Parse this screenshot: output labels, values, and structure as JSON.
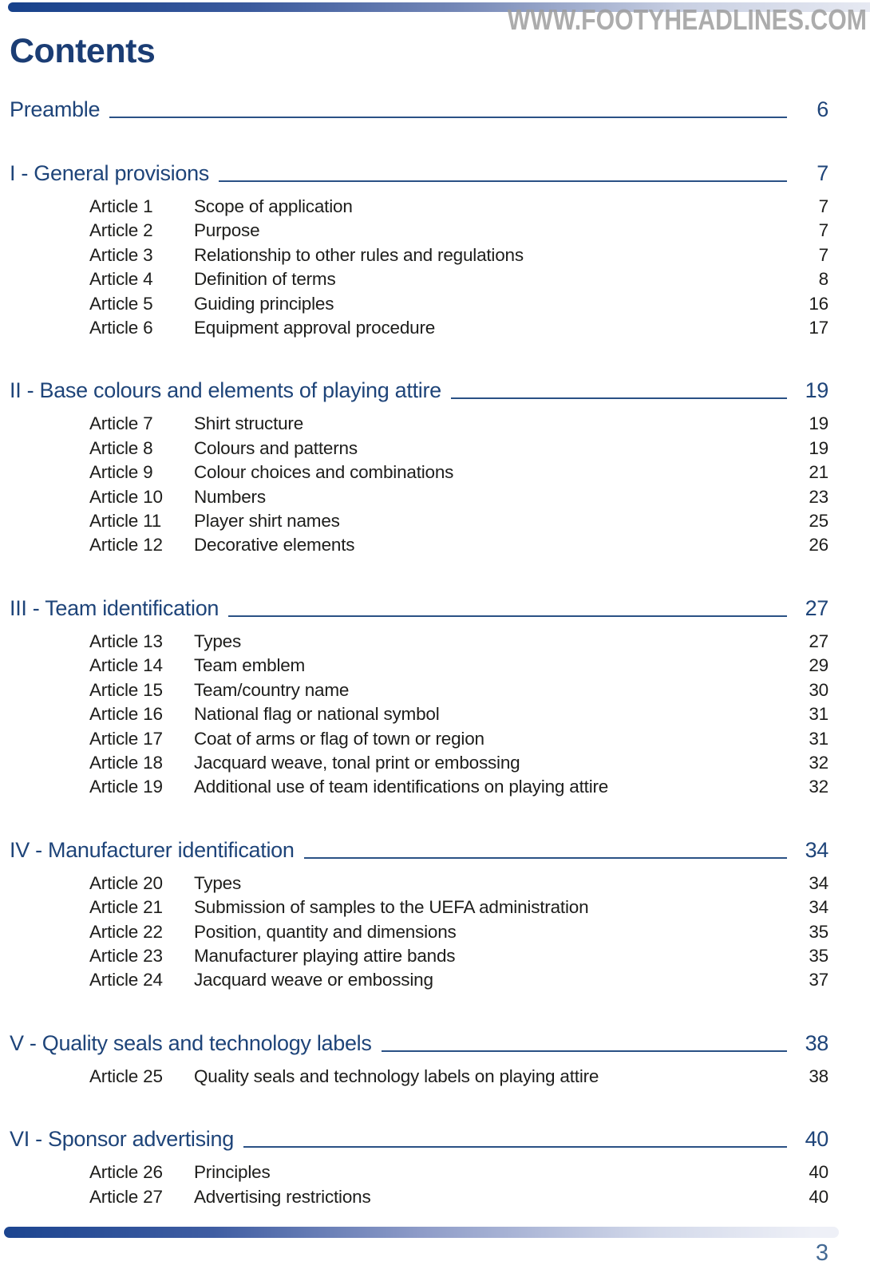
{
  "watermark": "WWW.FOOTYHEADLINES.COM",
  "title": "Contents",
  "page_number": "3",
  "preamble": {
    "label": "Preamble",
    "page": "6"
  },
  "sections": [
    {
      "title": "I - General provisions",
      "page": "7",
      "articles": [
        {
          "label": "Article 1",
          "title": "Scope of application",
          "page": "7"
        },
        {
          "label": "Article 2",
          "title": "Purpose",
          "page": "7"
        },
        {
          "label": "Article 3",
          "title": "Relationship to other rules and regulations",
          "page": "7"
        },
        {
          "label": "Article 4",
          "title": "Definition of terms",
          "page": "8"
        },
        {
          "label": "Article 5",
          "title": "Guiding principles",
          "page": "16"
        },
        {
          "label": "Article 6",
          "title": "Equipment approval procedure",
          "page": "17"
        }
      ]
    },
    {
      "title": "II - Base colours and elements of playing attire",
      "page": "19",
      "articles": [
        {
          "label": "Article 7",
          "title": "Shirt structure",
          "page": "19"
        },
        {
          "label": "Article 8",
          "title": "Colours and patterns",
          "page": "19"
        },
        {
          "label": "Article 9",
          "title": "Colour choices and combinations",
          "page": "21"
        },
        {
          "label": "Article 10",
          "title": "Numbers",
          "page": "23"
        },
        {
          "label": "Article 11",
          "title": "Player shirt names",
          "page": "25"
        },
        {
          "label": "Article 12",
          "title": "Decorative elements",
          "page": "26"
        }
      ]
    },
    {
      "title": "III - Team identification",
      "page": "27",
      "articles": [
        {
          "label": "Article 13",
          "title": "Types",
          "page": "27"
        },
        {
          "label": "Article 14",
          "title": "Team emblem",
          "page": "29"
        },
        {
          "label": "Article 15",
          "title": "Team/country name",
          "page": "30"
        },
        {
          "label": "Article 16",
          "title": "National flag or national symbol",
          "page": "31"
        },
        {
          "label": "Article 17",
          "title": "Coat of arms or flag of town or region",
          "page": "31"
        },
        {
          "label": "Article 18",
          "title": "Jacquard weave, tonal print or embossing",
          "page": "32"
        },
        {
          "label": "Article 19",
          "title": "Additional use of team identifications on playing attire",
          "page": "32"
        }
      ]
    },
    {
      "title": "IV - Manufacturer identification",
      "page": "34",
      "articles": [
        {
          "label": "Article 20",
          "title": "Types",
          "page": "34"
        },
        {
          "label": "Article 21",
          "title": "Submission of samples to the UEFA administration",
          "page": "34"
        },
        {
          "label": "Article 22",
          "title": "Position, quantity and dimensions",
          "page": "35"
        },
        {
          "label": "Article 23",
          "title": "Manufacturer playing attire bands",
          "page": "35"
        },
        {
          "label": "Article 24",
          "title": "Jacquard weave or embossing",
          "page": "37"
        }
      ]
    },
    {
      "title": "V - Quality seals and technology labels",
      "page": "38",
      "articles": [
        {
          "label": "Article 25",
          "title": "Quality seals and technology labels on playing attire",
          "page": "38"
        }
      ]
    },
    {
      "title": "VI - Sponsor advertising",
      "page": "40",
      "articles": [
        {
          "label": "Article 26",
          "title": "Principles",
          "page": "40"
        },
        {
          "label": "Article 27",
          "title": "Advertising restrictions",
          "page": "40"
        }
      ]
    }
  ],
  "colors": {
    "accent_blue": "#1e4479",
    "title_blue": "#1b3d74",
    "text_dark": "#1d1d1b",
    "leader_line_blue": "#2a5185",
    "bar_gradient_start": "#17418b",
    "bar_gradient_end": "#eef0f7",
    "watermark_gray": "#9e9e9e",
    "folio_blue": "#446a94"
  }
}
